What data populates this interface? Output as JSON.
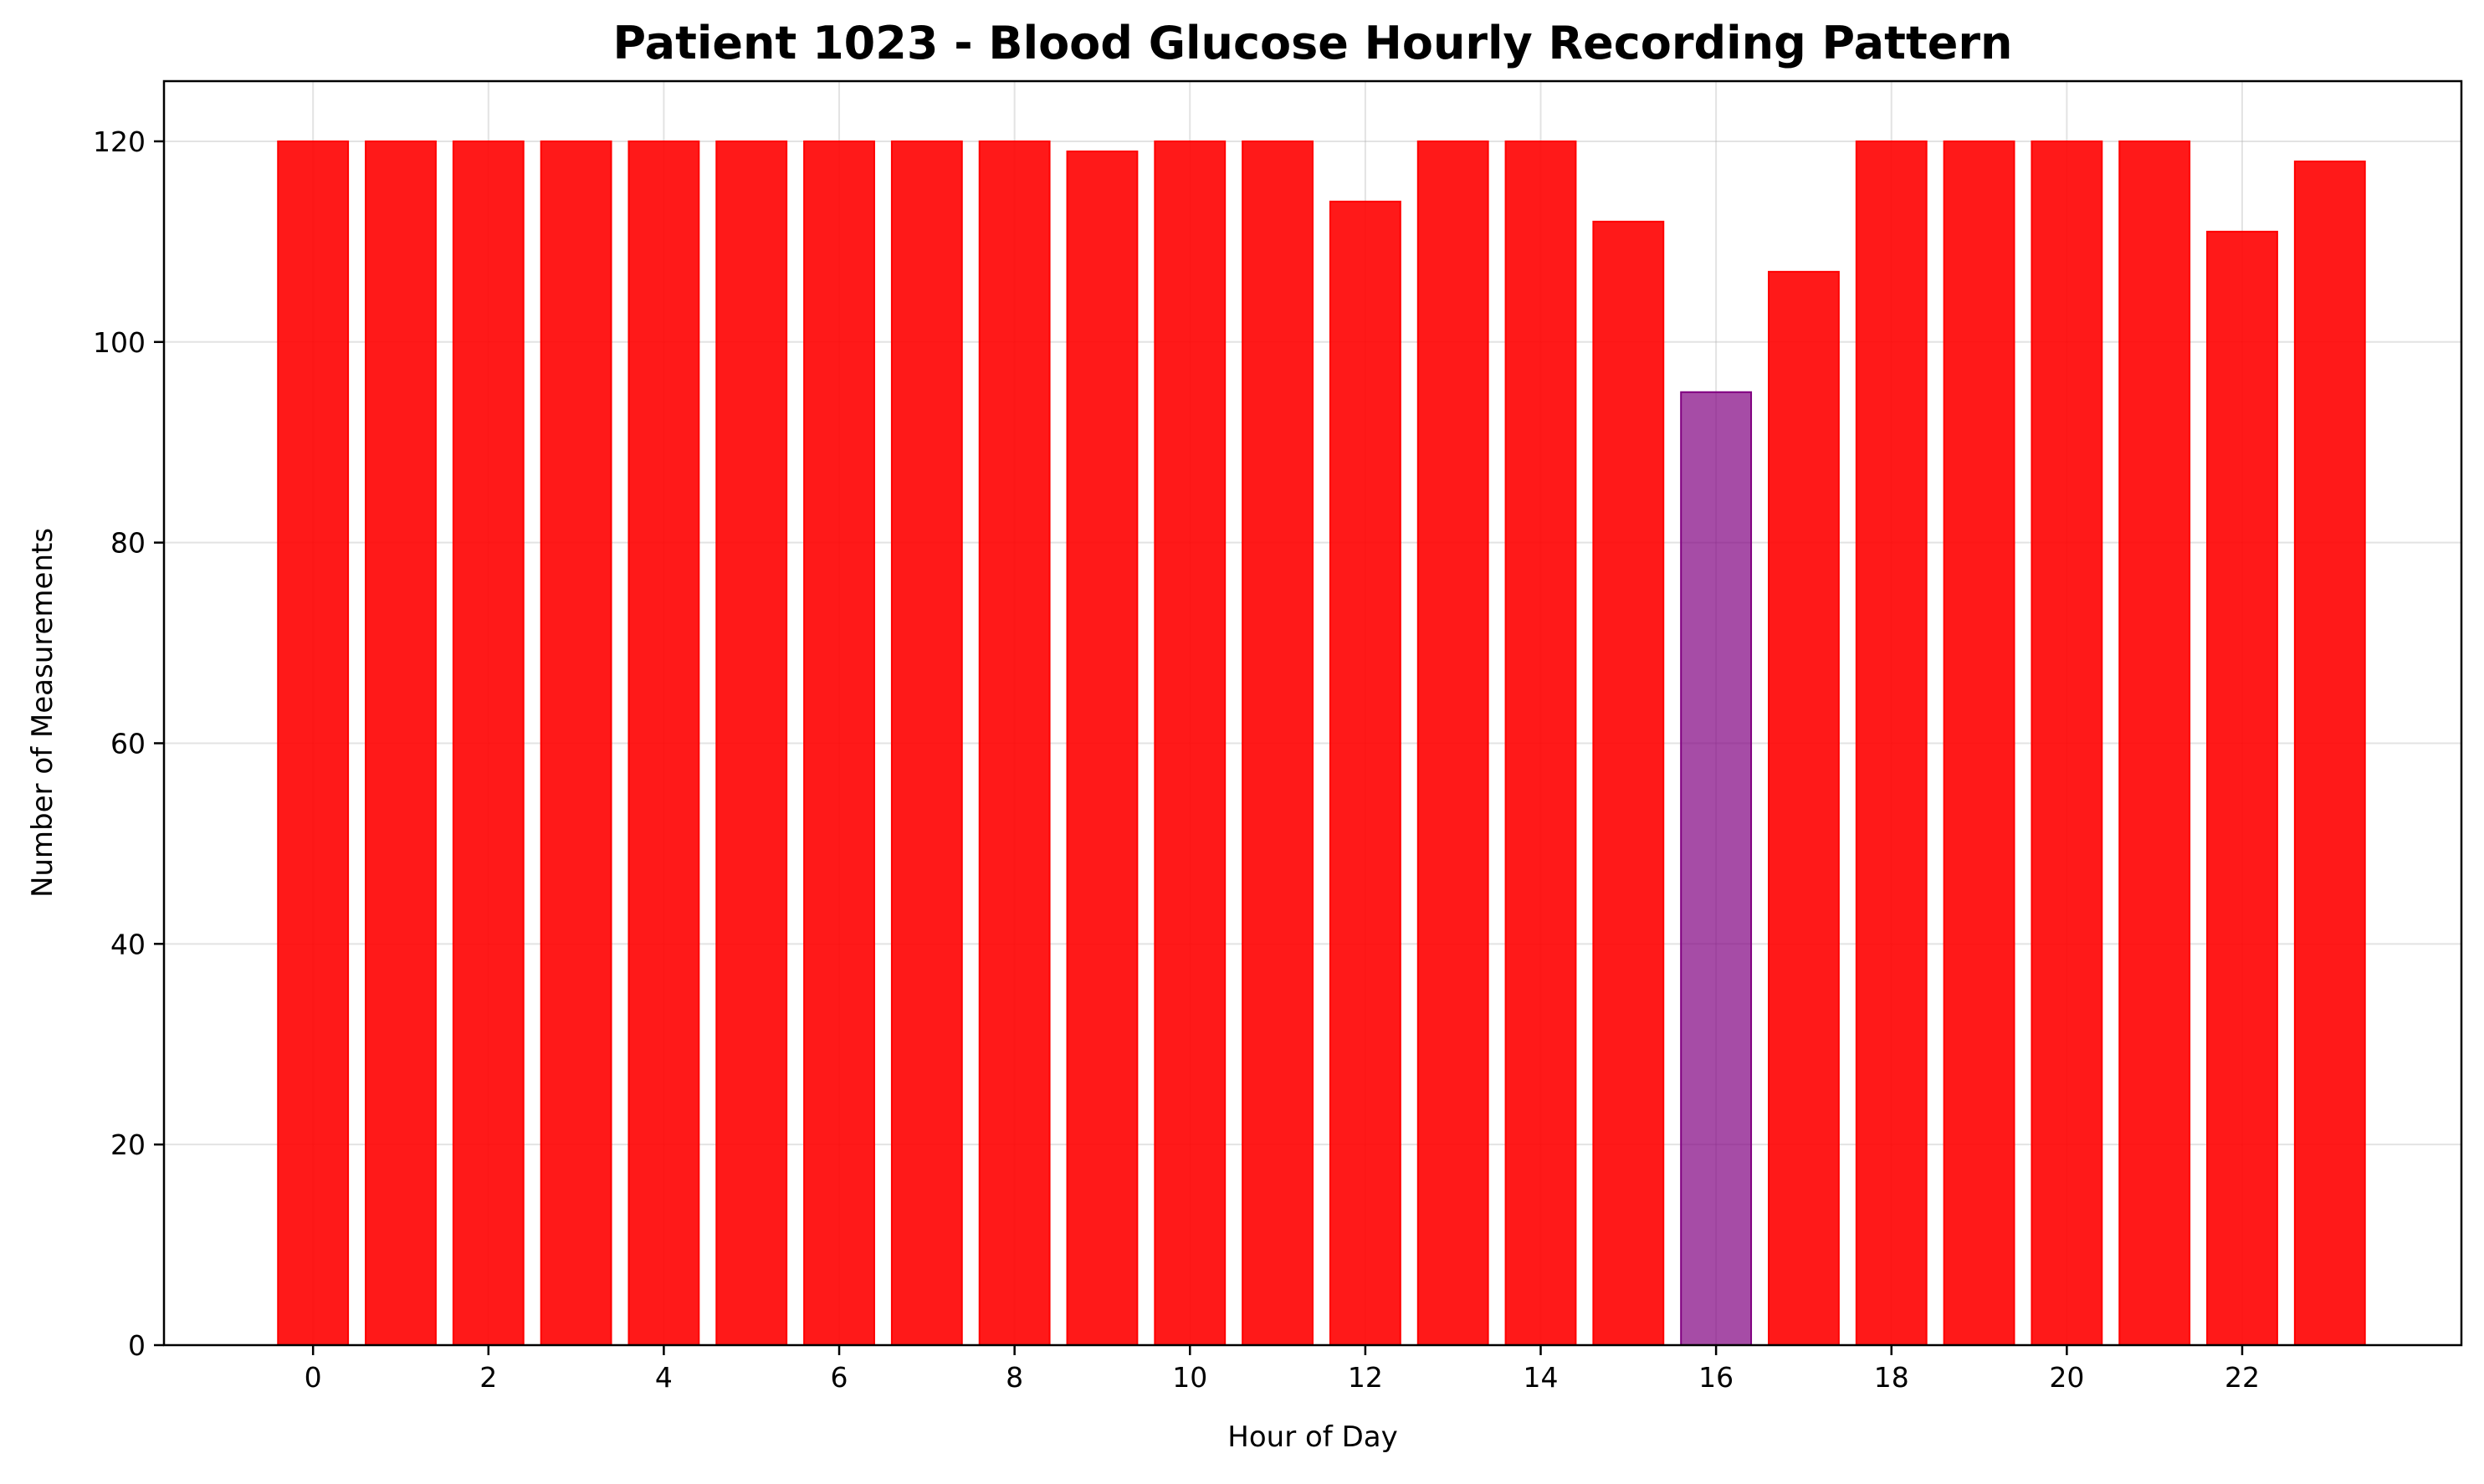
{
  "colors": {
    "normal_bar": "#ff0000",
    "highlight_bar": "#800080",
    "background": "#ffffff"
  },
  "chart_data": {
    "type": "bar",
    "title": "Patient 1023 - Blood Glucose Hourly Recording Pattern",
    "xlabel": "Hour of Day",
    "ylabel": "Number of Measurements",
    "categories": [
      0,
      1,
      2,
      3,
      4,
      5,
      6,
      7,
      8,
      9,
      10,
      11,
      12,
      13,
      14,
      15,
      16,
      17,
      18,
      19,
      20,
      21,
      22,
      23
    ],
    "values": [
      120,
      120,
      120,
      120,
      120,
      120,
      120,
      120,
      120,
      119,
      120,
      120,
      114,
      120,
      120,
      112,
      95,
      107,
      120,
      120,
      120,
      120,
      111,
      118
    ],
    "highlight_index": 16,
    "xlim": [
      -1.7,
      24.5
    ],
    "ylim": [
      0,
      126
    ],
    "xticks": [
      0,
      2,
      4,
      6,
      8,
      10,
      12,
      14,
      16,
      18,
      20,
      22
    ],
    "yticks": [
      0,
      20,
      40,
      60,
      80,
      100,
      120
    ],
    "grid": true,
    "legend": "none"
  }
}
